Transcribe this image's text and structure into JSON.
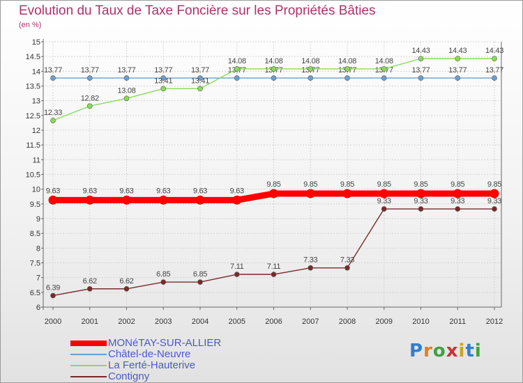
{
  "chart_data": {
    "type": "line",
    "title": "Evolution du Taux de Taxe Foncière sur les Propriétés Bâties",
    "ylabel": "(en %)",
    "xlabel": "",
    "x": [
      "2000",
      "2001",
      "2002",
      "2003",
      "2004",
      "2005",
      "2006",
      "2007",
      "2008",
      "2009",
      "2010",
      "2011",
      "2012"
    ],
    "ylim": [
      6,
      15
    ],
    "yticks": [
      "6",
      "6.5",
      "7",
      "7.5",
      "8",
      "8.5",
      "9",
      "9.5",
      "10",
      "10.5",
      "11",
      "11.5",
      "12",
      "12.5",
      "13",
      "13.5",
      "14",
      "14.5",
      "15"
    ],
    "grid": true,
    "legend_position": "bottom-left",
    "series": [
      {
        "name": "MONéTAY-SUR-ALLIER",
        "color": "#ff0000",
        "values": [
          9.63,
          9.63,
          9.63,
          9.63,
          9.63,
          9.63,
          9.85,
          9.85,
          9.85,
          9.85,
          9.85,
          9.85,
          9.85
        ],
        "labels": [
          "9.63",
          "9.63",
          "9.63",
          "9.63",
          "9.63",
          "9.63",
          "9.85",
          "9.85",
          "9.85",
          "9.85",
          "9.85",
          "9.85",
          "9.85"
        ]
      },
      {
        "name": "Châtel-de-Neuvre",
        "color": "#6a9fd0",
        "values": [
          13.77,
          13.77,
          13.77,
          13.77,
          13.77,
          13.77,
          13.77,
          13.77,
          13.77,
          13.77,
          13.77,
          13.77,
          13.77
        ],
        "labels": [
          "13.77",
          "13.77",
          "13.77",
          "13.77",
          "13.77",
          "13.77",
          "13.77",
          "13.77",
          "13.77",
          "13.77",
          "13.77",
          "13.77",
          "13.77"
        ]
      },
      {
        "name": "La Ferté-Hauterive",
        "color": "#88dd55",
        "values": [
          12.33,
          12.82,
          13.08,
          13.41,
          13.41,
          14.08,
          14.08,
          14.08,
          14.08,
          14.08,
          14.43,
          14.43,
          14.43
        ],
        "labels": [
          "12.33",
          "12.82",
          "13.08",
          "13.41",
          "13.41",
          "14.08",
          "14.08",
          "14.08",
          "14.08",
          "14.08",
          "14.43",
          "14.43",
          "14.43"
        ]
      },
      {
        "name": "Contigny",
        "color": "#7a2a2a",
        "values": [
          6.39,
          6.62,
          6.62,
          6.85,
          6.85,
          7.11,
          7.11,
          7.33,
          7.33,
          9.33,
          9.33,
          9.33,
          9.33
        ],
        "labels": [
          "6.39",
          "6.62",
          "6.62",
          "6.85",
          "6.85",
          "7.11",
          "7.11",
          "7.33",
          "7.33",
          "9.33",
          "9.33",
          "9.33",
          "9.33"
        ]
      }
    ]
  },
  "brand": {
    "letters": [
      "P",
      "r",
      "o",
      "x",
      "i",
      "t",
      "i"
    ],
    "colors": [
      "#2f7fd0",
      "#e08020",
      "#40a040",
      "#d03030",
      "#d0a020",
      "#2f7fd0",
      "#40a040"
    ]
  }
}
